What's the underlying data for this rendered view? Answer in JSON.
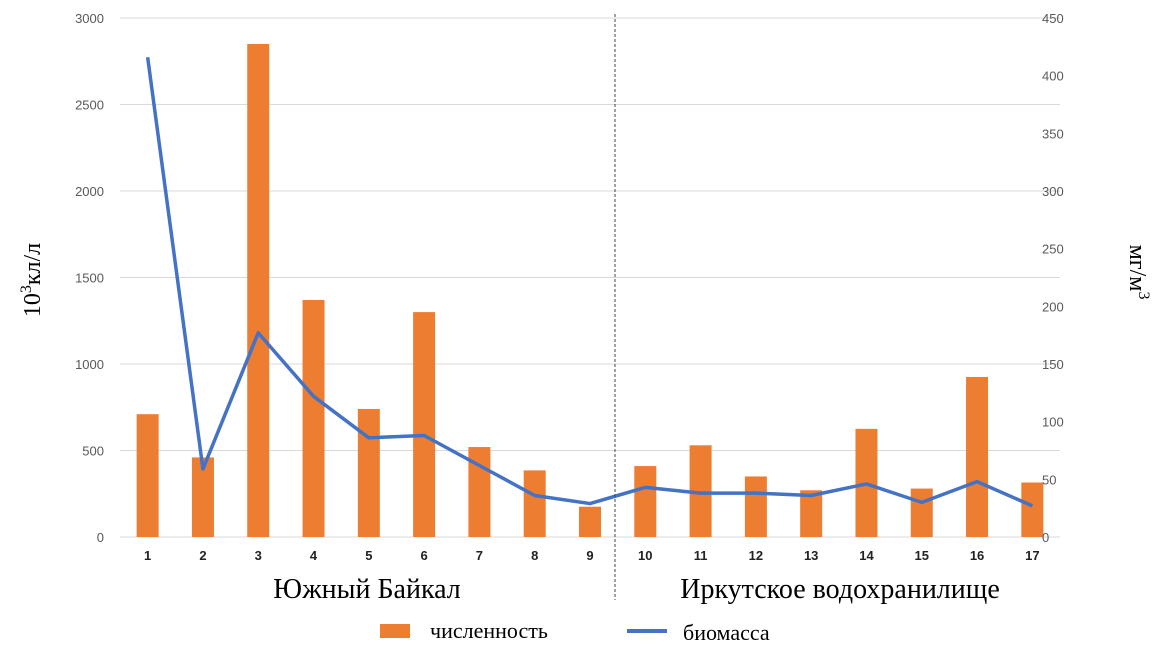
{
  "chart_data": {
    "type": "bar+line",
    "categories": [
      "1",
      "2",
      "3",
      "4",
      "5",
      "6",
      "7",
      "8",
      "9",
      "10",
      "11",
      "12",
      "13",
      "14",
      "15",
      "16",
      "17"
    ],
    "series": [
      {
        "name": "численность",
        "type": "bar",
        "axis": "left",
        "color": "#ED7D31",
        "values": [
          710,
          460,
          2850,
          1370,
          740,
          1300,
          520,
          385,
          175,
          410,
          530,
          350,
          270,
          625,
          280,
          925,
          315
        ]
      },
      {
        "name": "биомасса",
        "type": "line",
        "axis": "right",
        "color": "#4472C4",
        "values": [
          416,
          59,
          177,
          122,
          86,
          88,
          62,
          36,
          29,
          43,
          38,
          38,
          36,
          46,
          30,
          48,
          27
        ]
      }
    ],
    "ylabel_left": {
      "base": "10",
      "exp": "3",
      "unit": "кл/л"
    },
    "ylabel_right": {
      "base": "мг/м",
      "exp": "3"
    },
    "ylim_left": [
      0,
      3000
    ],
    "yticks_left": [
      0,
      500,
      1000,
      1500,
      2000,
      2500,
      3000
    ],
    "ylim_right": [
      0,
      450
    ],
    "yticks_right": [
      0,
      50,
      100,
      150,
      200,
      250,
      300,
      350,
      400,
      450
    ],
    "groups": [
      {
        "label": "Южный Байкал",
        "from": "1",
        "to": "9"
      },
      {
        "label": "Иркутское водохранилище",
        "from": "10",
        "to": "17"
      }
    ],
    "grid": true,
    "legend": "bottom"
  }
}
